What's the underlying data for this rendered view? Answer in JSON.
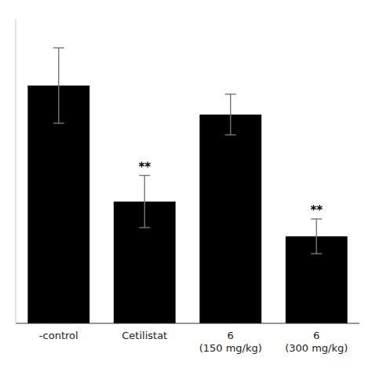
{
  "chart_data": {
    "type": "bar",
    "categories": [
      "-control",
      "Cetilistat",
      "6\n(150 mg/kg)",
      "6\n(300 mg/kg)"
    ],
    "values": [
      0.82,
      0.42,
      0.72,
      0.3
    ],
    "errors": [
      0.13,
      0.09,
      0.07,
      0.06
    ],
    "significance": [
      null,
      "**",
      null,
      "**"
    ],
    "color": "#000000",
    "ylim": [
      0,
      1.05
    ],
    "tick_labels": "x",
    "grid": false
  }
}
